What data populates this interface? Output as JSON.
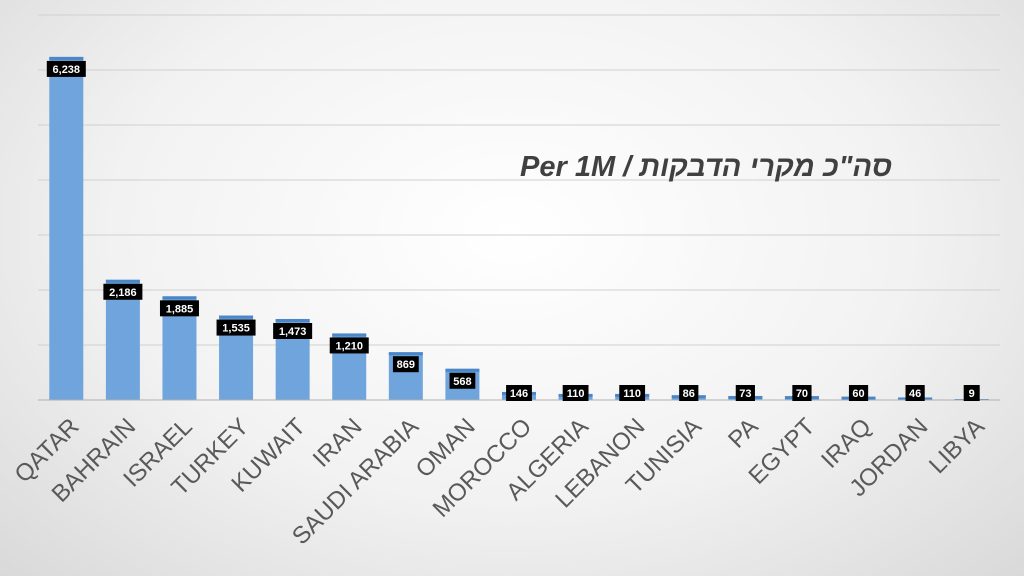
{
  "chart_data": {
    "type": "bar",
    "title": "סה\"כ מקרי הדבקות / Per 1M",
    "xlabel": "",
    "ylabel": "",
    "categories": [
      "QATAR",
      "BAHRAIN",
      "ISRAEL",
      "TURKEY",
      "KUWAIT",
      "IRAN",
      "SAUDI ARABIA",
      "OMAN",
      "MOROCCO",
      "ALGERIA",
      "LEBANON",
      "TUNISIA",
      "PA",
      "EGYPT",
      "IRAQ",
      "JORDAN",
      "LIBYA"
    ],
    "values": [
      6238,
      2186,
      1885,
      1535,
      1473,
      1210,
      869,
      568,
      146,
      110,
      110,
      86,
      73,
      70,
      60,
      46,
      9
    ],
    "data_labels": [
      "6,238",
      "2,186",
      "1,885",
      "1,535",
      "1,473",
      "1,210",
      "869",
      "568",
      "146",
      "110",
      "110",
      "86",
      "73",
      "70",
      "60",
      "46",
      "9"
    ],
    "ylim": [
      0,
      7000
    ],
    "grid": true,
    "legend": "none",
    "colors": {
      "bar": "#6fa5dc",
      "bar_top": "#4a86c8",
      "label_bg": "#000000",
      "label_text": "#ffffff",
      "axis_text": "#595959",
      "title_text": "#404040"
    }
  }
}
